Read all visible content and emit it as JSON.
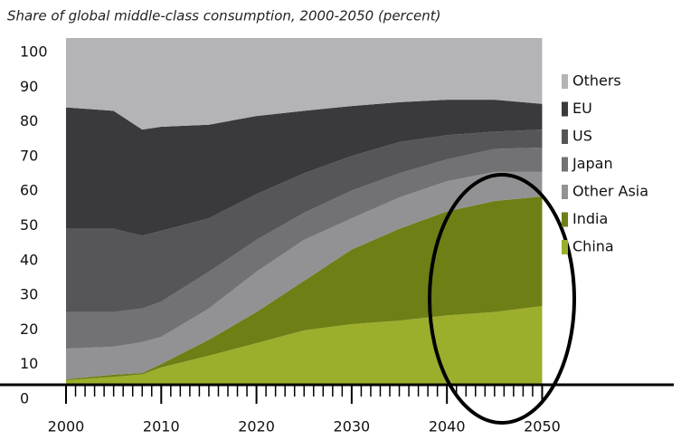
{
  "chart_data": {
    "type": "stacked_area",
    "title": "Share of global middle-class consumption, 2000-2050 (percent)",
    "x": [
      2000,
      2005,
      2008,
      2010,
      2015,
      2020,
      2025,
      2030,
      2035,
      2040,
      2045,
      2050
    ],
    "series": [
      {
        "name": "China",
        "color": "#9cae2c",
        "values": [
          1.3,
          2.3,
          3,
          5,
          8.4,
          12,
          15.7,
          17.5,
          18.5,
          20,
          21,
          22.7
        ]
      },
      {
        "name": "India",
        "color": "#6e7f16",
        "values": [
          0.3,
          0.6,
          0.4,
          1,
          4.6,
          9,
          14.3,
          21.5,
          26.5,
          30,
          32,
          31.6
        ]
      },
      {
        "name": "Other Asia",
        "color": "#929294",
        "values": [
          8.8,
          8.1,
          8.9,
          7.8,
          9,
          11.6,
          11.8,
          9,
          9,
          8.7,
          8.4,
          7.1
        ]
      },
      {
        "name": "Japan",
        "color": "#727274",
        "values": [
          10.6,
          10,
          9.7,
          10.2,
          10.6,
          9.2,
          7.8,
          8,
          7,
          6.3,
          6.6,
          7
        ]
      },
      {
        "name": "US",
        "color": "#565658",
        "values": [
          24,
          24,
          21,
          20.4,
          15.4,
          13.2,
          11.4,
          10,
          9,
          7,
          5,
          5.2
        ]
      },
      {
        "name": "EU",
        "color": "#3a3a3c",
        "values": [
          35,
          34,
          30.6,
          30,
          27,
          22.5,
          18,
          14.4,
          11.5,
          10.2,
          9.2,
          7.4
        ]
      },
      {
        "name": "Others",
        "color": "#b4b4b6",
        "values": [
          20,
          21,
          26.4,
          25.6,
          25,
          22.5,
          21,
          19.6,
          18.5,
          17.8,
          17.8,
          19
        ]
      }
    ],
    "xlim": [
      2000,
      2051
    ],
    "xticks": [
      2000,
      2010,
      2020,
      2030,
      2040,
      2050
    ],
    "ylim": [
      0,
      100
    ],
    "yticks": [
      0,
      10,
      20,
      30,
      40,
      50,
      60,
      70,
      80,
      90,
      100
    ],
    "legend": "right"
  }
}
